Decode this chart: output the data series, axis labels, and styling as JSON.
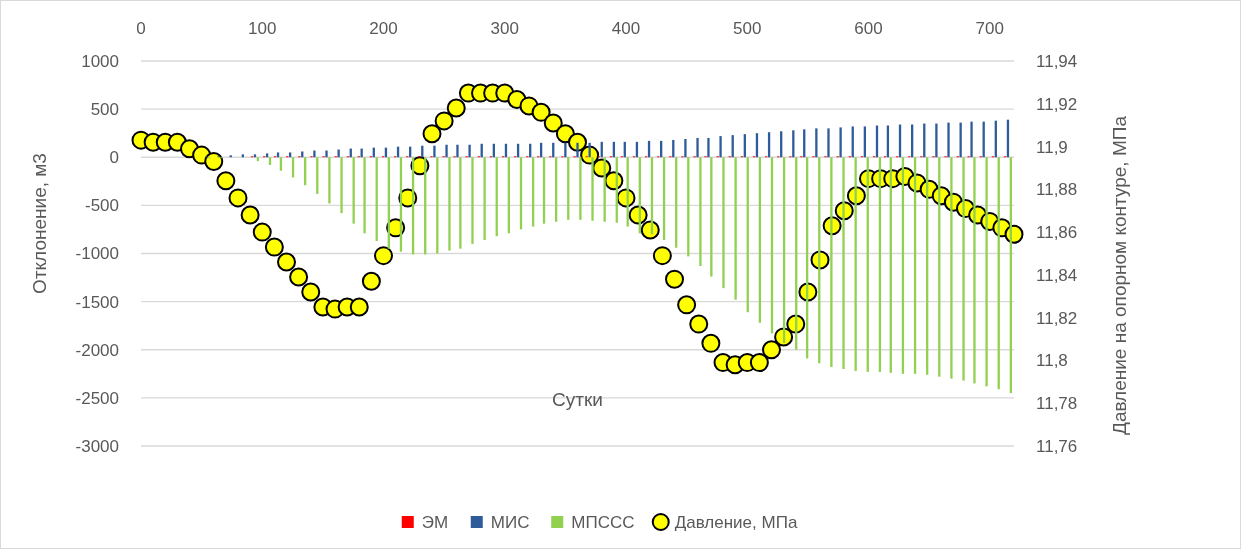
{
  "chart_data": {
    "type": "bar",
    "xlabel": "Сутки",
    "ylabel": "Отклонение, м3",
    "y2label": "Давление на опорном контуре, МПа",
    "x": [
      5,
      15,
      25,
      35,
      44,
      54,
      64,
      74,
      84,
      94,
      104,
      113,
      123,
      133,
      143,
      153,
      163,
      173,
      182,
      192,
      202,
      212,
      222,
      232,
      242,
      252,
      261,
      271,
      281,
      291,
      301,
      311,
      321,
      330,
      340,
      350,
      360,
      370,
      380,
      390,
      399,
      409,
      419,
      429,
      439,
      449,
      459,
      468,
      478,
      488,
      498,
      508,
      518,
      528,
      538,
      547,
      557,
      567,
      577,
      587,
      597,
      607,
      616,
      626,
      636,
      646,
      656,
      666,
      676,
      685,
      695,
      705,
      715
    ],
    "series": [
      {
        "name": "ЭМ",
        "color": "#ff0000",
        "values": [
          0,
          0,
          0,
          0,
          0,
          0,
          0,
          0,
          0,
          10,
          10,
          10,
          10,
          10,
          10,
          10,
          10,
          10,
          10,
          10,
          10,
          10,
          10,
          10,
          10,
          10,
          10,
          10,
          10,
          10,
          10,
          10,
          10,
          10,
          10,
          10,
          10,
          10,
          10,
          10,
          10,
          10,
          10,
          10,
          10,
          10,
          10,
          10,
          10,
          10,
          10,
          10,
          10,
          10,
          10,
          10,
          10,
          10,
          10,
          10,
          10,
          10,
          10,
          10,
          10,
          10,
          10,
          10,
          10,
          10,
          10,
          10,
          10
        ]
      },
      {
        "name": "МИС",
        "color": "#2e5c9a",
        "values": [
          0,
          0,
          0,
          0,
          0,
          10,
          10,
          20,
          30,
          30,
          40,
          50,
          50,
          60,
          70,
          70,
          80,
          90,
          90,
          100,
          100,
          110,
          110,
          120,
          120,
          130,
          130,
          130,
          140,
          140,
          140,
          140,
          140,
          150,
          150,
          150,
          150,
          150,
          160,
          160,
          160,
          160,
          170,
          170,
          180,
          190,
          200,
          200,
          220,
          230,
          240,
          250,
          260,
          270,
          280,
          290,
          300,
          300,
          310,
          320,
          320,
          330,
          330,
          340,
          340,
          350,
          350,
          360,
          360,
          370,
          370,
          380,
          390
        ]
      },
      {
        "name": "МПССС",
        "color": "#92d050",
        "values": [
          0,
          0,
          0,
          0,
          0,
          -10,
          -10,
          0,
          0,
          -40,
          -80,
          -140,
          -210,
          -290,
          -380,
          -480,
          -580,
          -690,
          -790,
          -870,
          -950,
          -980,
          -1010,
          -1010,
          -1000,
          -970,
          -950,
          -900,
          -860,
          -820,
          -790,
          -750,
          -720,
          -690,
          -670,
          -650,
          -650,
          -660,
          -670,
          -680,
          -720,
          -790,
          -800,
          -860,
          -940,
          -1030,
          -1130,
          -1240,
          -1360,
          -1480,
          -1610,
          -1720,
          -1830,
          -1930,
          -2000,
          -2090,
          -2140,
          -2180,
          -2200,
          -2220,
          -2230,
          -2230,
          -2240,
          -2250,
          -2250,
          -2260,
          -2280,
          -2300,
          -2320,
          -2350,
          -2380,
          -2410,
          -2450
        ]
      },
      {
        "name": "Давление, МПа",
        "type": "scatter",
        "axis": "y2",
        "color": "#ffff00",
        "x": [
          0,
          10,
          20,
          30,
          40,
          50,
          60,
          70,
          80,
          90,
          100,
          110,
          120,
          130,
          140,
          150,
          160,
          170,
          180,
          190,
          200,
          210,
          220,
          230,
          240,
          250,
          260,
          270,
          280,
          290,
          300,
          310,
          320,
          330,
          340,
          350,
          360,
          370,
          380,
          390,
          400,
          410,
          420,
          430,
          440,
          450,
          460,
          470,
          480,
          490,
          500,
          510,
          520,
          530,
          540,
          550,
          560,
          570,
          580,
          590,
          600,
          610,
          620,
          630,
          640,
          650,
          660,
          670,
          680,
          690,
          700,
          710,
          720
        ],
        "values": [
          11.903,
          11.902,
          11.902,
          11.902,
          11.899,
          11.896,
          11.893,
          11.884,
          11.876,
          11.868,
          11.86,
          11.853,
          11.846,
          11.839,
          11.832,
          11.825,
          11.824,
          11.825,
          11.825,
          11.837,
          11.849,
          11.862,
          11.876,
          11.891,
          11.906,
          11.912,
          11.918,
          11.925,
          11.925,
          11.925,
          11.925,
          11.922,
          11.919,
          11.916,
          11.911,
          11.906,
          11.902,
          11.896,
          11.89,
          11.884,
          11.876,
          11.868,
          11.861,
          11.849,
          11.838,
          11.826,
          11.817,
          11.808,
          11.799,
          11.798,
          11.799,
          11.799,
          11.805,
          11.811,
          11.817,
          11.832,
          11.847,
          11.863,
          11.87,
          11.877,
          11.885,
          11.885,
          11.885,
          11.886,
          11.883,
          11.88,
          11.877,
          11.874,
          11.871,
          11.868,
          11.865,
          11.862,
          11.859
        ]
      }
    ],
    "xlim": [
      0,
      720
    ],
    "xticks": [
      0,
      100,
      200,
      300,
      400,
      500,
      600,
      700
    ],
    "ylim": [
      -3000,
      1000
    ],
    "yticks": [
      -3000,
      -2500,
      -2000,
      -1500,
      -1000,
      -500,
      0,
      500,
      1000
    ],
    "y2lim": [
      11.76,
      11.94
    ],
    "y2ticks": [
      {
        "value": 11.76,
        "label": "11,76"
      },
      {
        "value": 11.78,
        "label": "11,78"
      },
      {
        "value": 11.8,
        "label": "11,8"
      },
      {
        "value": 11.82,
        "label": "11,82"
      },
      {
        "value": 11.84,
        "label": "11,84"
      },
      {
        "value": 11.86,
        "label": "11,86"
      },
      {
        "value": 11.88,
        "label": "11,88"
      },
      {
        "value": 11.9,
        "label": "11,9"
      },
      {
        "value": 11.92,
        "label": "11,92"
      },
      {
        "value": 11.94,
        "label": "11,94"
      }
    ],
    "grid": "y",
    "legend": "bottom",
    "marker": "circle"
  }
}
